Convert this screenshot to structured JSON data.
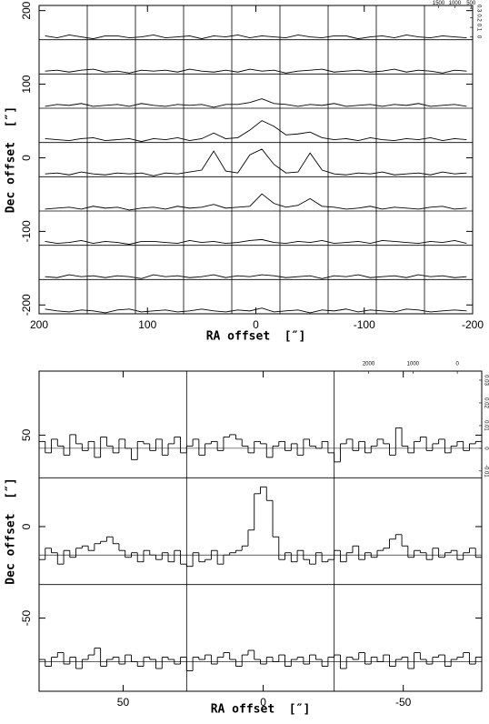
{
  "chart_data": [
    {
      "type": "line",
      "xlabel": "RA offset  [″]",
      "ylabel": "Dec offset  [″]",
      "xlim": [
        200,
        -200
      ],
      "ylim": [
        -212,
        207
      ],
      "xticks": [
        200,
        100,
        0,
        -100,
        -200
      ],
      "yticks": [
        200,
        100,
        0,
        -100,
        -200
      ],
      "cell_xlim": [
        1936,
        450
      ],
      "cell_ylim": [
        -0.03,
        0.33
      ],
      "cell_xticks": [
        1500,
        1000,
        500
      ],
      "cell_yticks": [
        0,
        0.1,
        0.2,
        0.3
      ],
      "color": "#000000",
      "series": [
        {
          "values": [
            0.01,
            -0.01,
            0.02,
            0,
            -0.02,
            0.01,
            0.01,
            -0.01,
            0,
            0.02,
            -0.01,
            0,
            0.01,
            -0.02,
            0.01,
            0,
            0.02,
            -0.01,
            0.01,
            0,
            -0.01,
            0.02,
            0,
            -0.01,
            0.01,
            0.01,
            -0.02,
            0,
            0.01,
            -0.01,
            0.02,
            0,
            -0.01,
            0.01,
            0,
            -0.01
          ]
        },
        {
          "values": [
            0,
            0.01,
            -0.01,
            0.01,
            0.02,
            -0.01,
            0,
            -0.02,
            0.01,
            0,
            0.01,
            -0.01,
            0.02,
            0,
            -0.01,
            0.01,
            -0.01,
            0.02,
            0,
            0.01,
            -0.02,
            0,
            0.01,
            0.02,
            -0.01,
            0,
            0.01,
            -0.01,
            0,
            0.02,
            -0.01,
            0.01,
            0,
            -0.02,
            0.01,
            0
          ]
        },
        {
          "values": [
            -0.01,
            0.01,
            0,
            0.02,
            -0.01,
            0,
            0.01,
            -0.01,
            0.02,
            0,
            -0.01,
            0.01,
            0,
            0.01,
            -0.02,
            0.01,
            0.01,
            0.03,
            0.07,
            0.02,
            0.01,
            -0.01,
            0.01,
            0,
            0.02,
            -0.01,
            0,
            0.01,
            -0.01,
            0.01,
            0,
            0.02,
            -0.01,
            0,
            0.01,
            -0.01
          ]
        },
        {
          "values": [
            0.01,
            0,
            -0.01,
            0.01,
            0.02,
            -0.01,
            0,
            0.01,
            -0.02,
            0.01,
            0,
            0.02,
            -0.01,
            0.01,
            0.07,
            0.01,
            0.02,
            0.1,
            0.2,
            0.14,
            0.05,
            0.06,
            0.08,
            0.02,
            0,
            0.01,
            -0.01,
            0.02,
            0,
            -0.01,
            0.01,
            0,
            0.02,
            -0.01,
            0.01,
            0
          ]
        },
        {
          "values": [
            0,
            0.01,
            -0.01,
            0.02,
            0,
            -0.01,
            0.01,
            0,
            0.01,
            -0.02,
            0.01,
            0,
            0.02,
            0.04,
            0.24,
            0.03,
            0.01,
            0.2,
            0.26,
            0.1,
            0.01,
            0.02,
            0.22,
            0.04,
            0,
            -0.01,
            0.01,
            0,
            0.02,
            -0.01,
            0,
            0.01,
            -0.01,
            0.02,
            0,
            0.01
          ]
        },
        {
          "values": [
            -0.01,
            0,
            0.01,
            -0.01,
            0.02,
            0,
            0.01,
            -0.02,
            0,
            0.01,
            -0.01,
            0.02,
            0,
            0.01,
            0.04,
            0,
            0.01,
            0.02,
            0.15,
            0.05,
            0.01,
            0.03,
            0.1,
            0.02,
            0.01,
            -0.01,
            0,
            0.02,
            -0.01,
            0.01,
            0,
            -0.01,
            0.01,
            0.02,
            -0.01,
            0
          ]
        },
        {
          "values": [
            0.01,
            -0.01,
            0,
            0.02,
            -0.01,
            0.01,
            0,
            -0.02,
            0.01,
            0.01,
            0,
            -0.01,
            0.02,
            0,
            0.01,
            -0.01,
            0,
            0.02,
            0.03,
            0,
            -0.01,
            0.01,
            0,
            0.02,
            -0.01,
            0,
            0.01,
            -0.01,
            0.02,
            0.01,
            0,
            -0.01,
            0.01,
            0,
            0.02,
            -0.01
          ]
        },
        {
          "values": [
            0,
            -0.01,
            0.02,
            0,
            0.01,
            -0.01,
            0.01,
            0,
            -0.02,
            0.02,
            0,
            0.01,
            -0.01,
            0,
            0.02,
            -0.01,
            0.01,
            0,
            0.02,
            0.01,
            -0.01,
            0,
            0.01,
            -0.02,
            0.01,
            0,
            0.02,
            -0.01,
            0,
            0.01,
            -0.01,
            0.02,
            0,
            0.01,
            -0.01,
            0
          ]
        },
        {
          "values": [
            0.02,
            0,
            -0.01,
            0.01,
            0,
            -0.02,
            0.01,
            0.02,
            -0.01,
            0,
            0.01,
            -0.01,
            0,
            0.02,
            0,
            -0.01,
            0.01,
            0,
            0.03,
            -0.01,
            0,
            0.01,
            -0.02,
            0.01,
            0,
            0.02,
            -0.01,
            0.01,
            0,
            -0.01,
            0.02,
            0.01,
            -0.01,
            0,
            0.01,
            0
          ]
        }
      ]
    },
    {
      "type": "step",
      "xlabel": "RA offset  [″]",
      "ylabel": "Dec offset  [″]",
      "xlim": [
        80,
        -78
      ],
      "ylim": [
        -90,
        85
      ],
      "xticks": [
        50,
        0,
        -50
      ],
      "yticks": [
        50,
        0,
        -50
      ],
      "cell_xlim": [
        2776,
        -551
      ],
      "cell_ylim": [
        -0.013,
        0.034
      ],
      "cell_xticks": [
        2000,
        1000,
        0
      ],
      "cell_yticks": [
        -0.01,
        0,
        0.01,
        0.02,
        0.03
      ],
      "color": "#000000",
      "series": [
        {
          "values": [
            0.003,
            -0.002,
            0.004,
            0.001,
            -0.003,
            0.006,
            0.002,
            -0.001,
            0.003,
            -0.004,
            0.005,
            0.001,
            -0.002,
            0.004,
            0,
            -0.005,
            0.003,
            0.002,
            -0.001,
            0.004,
            -0.003,
            0.002,
            0.005,
            -0.002,
            0.001,
            0.004,
            -0.003,
            0.002,
            0.003,
            -0.001,
            0.005,
            0.006,
            0.004,
            0.001,
            -0.002,
            0.003,
            0.002,
            -0.004,
            0.001,
            0.003,
            -0.001,
            0.002,
            -0.003,
            0.004,
            0.001,
            0,
            0.003,
            -0.002,
            -0.006,
            0.002,
            0.004,
            -0.001,
            0.003,
            -0.002,
            0.001,
            0.004,
            0.002,
            -0.003,
            0.009,
            0.001,
            -0.002,
            0.003,
            0.005,
            -0.001,
            0.002,
            0.004,
            -0.002,
            0.001,
            0.003,
            -0.001,
            0.002,
            0.003
          ]
        },
        {
          "values": [
            -0.002,
            0.003,
            0.001,
            -0.004,
            0.002,
            -0.001,
            0.003,
            0.004,
            0.002,
            0.005,
            0.006,
            0.008,
            0.005,
            0.002,
            -0.001,
            0.001,
            -0.003,
            0.002,
            0,
            -0.002,
            0.001,
            -0.003,
            0.002,
            -0.004,
            -0.005,
            0.001,
            -0.003,
            -0.002,
            0.002,
            -0.004,
            0,
            0.001,
            0.002,
            0.004,
            0.011,
            0.027,
            0.03,
            0.024,
            0.008,
            -0.002,
            0.001,
            -0.003,
            0.002,
            -0.002,
            -0.004,
            0.001,
            -0.003,
            -0.002,
            0.002,
            -0.003,
            0.001,
            0.004,
            -0.002,
            0.001,
            -0.001,
            0.002,
            0.003,
            0.007,
            0.009,
            0.004,
            -0.001,
            0.002,
            0.001,
            -0.002,
            0.003,
            -0.001,
            0.001,
            0.002,
            -0.002,
            0.001,
            0.003,
            -0.001
          ]
        },
        {
          "values": [
            0.001,
            -0.002,
            0.002,
            0.004,
            -0.001,
            0.002,
            -0.003,
            0.001,
            0.003,
            0.006,
            -0.002,
            0.001,
            0.002,
            -0.001,
            0.003,
            0,
            -0.002,
            0.002,
            0.001,
            -0.003,
            0.002,
            0.001,
            -0.001,
            0.002,
            -0.004,
            0.002,
            0.001,
            0.003,
            -0.001,
            0.002,
            0.004,
            0.001,
            -0.002,
            0.003,
            0.005,
            0.001,
            -0.001,
            0.002,
            0,
            0.003,
            -0.002,
            0.001,
            0.002,
            -0.001,
            0.003,
            0.001,
            -0.002,
            0.002,
            0.003,
            -0.003,
            0.002,
            0.001,
            0.004,
            -0.001,
            0.002,
            0,
            0.003,
            -0.002,
            0.001,
            0.002,
            -0.003,
            0.004,
            0.001,
            -0.001,
            0.002,
            0.003,
            -0.002,
            0.001,
            0.002,
            0.004,
            -0.001,
            0.002
          ]
        }
      ]
    }
  ]
}
